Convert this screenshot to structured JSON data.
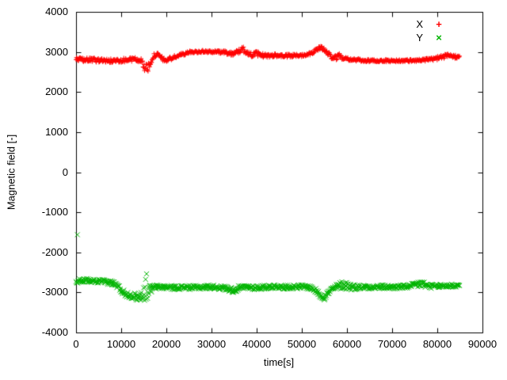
{
  "chart": {
    "xlabel": "time[s]",
    "ylabel": "Magnetic field [-]",
    "x_ticks": [
      0,
      10000,
      20000,
      30000,
      40000,
      50000,
      60000,
      70000,
      80000,
      90000
    ],
    "y_ticks": [
      -4000,
      -3000,
      -2000,
      -1000,
      0,
      1000,
      2000,
      3000,
      4000
    ],
    "legend": [
      {
        "label": "X",
        "glyph": "+",
        "color": "#ff0000"
      },
      {
        "label": "Y",
        "glyph": "×",
        "color": "#00b400"
      }
    ]
  },
  "chart_data": {
    "type": "scatter",
    "title": "",
    "xlabel": "time[s]",
    "ylabel": "Magnetic field [-]",
    "xlim": [
      0,
      90000
    ],
    "ylim": [
      -4000,
      4000
    ],
    "grid": false,
    "legend_position": "top-right",
    "series": [
      {
        "name": "X",
        "color": "#ff0000",
        "marker": "plus",
        "sample_step": 110,
        "keypoints": [
          [
            0,
            2810,
            50
          ],
          [
            3000,
            2800,
            50
          ],
          [
            6000,
            2790,
            50
          ],
          [
            8000,
            2770,
            60
          ],
          [
            9000,
            2790,
            50
          ],
          [
            11000,
            2800,
            50
          ],
          [
            13000,
            2820,
            50
          ],
          [
            14500,
            2780,
            60
          ],
          [
            15300,
            2600,
            120
          ],
          [
            15800,
            2550,
            130
          ],
          [
            16300,
            2700,
            100
          ],
          [
            17000,
            2880,
            60
          ],
          [
            17800,
            2940,
            50
          ],
          [
            18500,
            2900,
            50
          ],
          [
            19200,
            2820,
            50
          ],
          [
            20000,
            2790,
            50
          ],
          [
            21000,
            2840,
            50
          ],
          [
            22500,
            2900,
            40
          ],
          [
            24000,
            2960,
            40
          ],
          [
            25500,
            3000,
            30
          ],
          [
            28000,
            3010,
            30
          ],
          [
            31000,
            3005,
            30
          ],
          [
            33000,
            2990,
            40
          ],
          [
            34500,
            2960,
            50
          ],
          [
            35500,
            2990,
            60
          ],
          [
            36500,
            3040,
            70
          ],
          [
            37200,
            3060,
            80
          ],
          [
            38000,
            2980,
            60
          ],
          [
            39000,
            2920,
            50
          ],
          [
            40000,
            2960,
            60
          ],
          [
            41000,
            2920,
            50
          ],
          [
            42500,
            2900,
            50
          ],
          [
            44000,
            2920,
            40
          ],
          [
            46000,
            2900,
            40
          ],
          [
            48000,
            2905,
            40
          ],
          [
            50000,
            2920,
            40
          ],
          [
            51500,
            2950,
            40
          ],
          [
            52500,
            3000,
            40
          ],
          [
            53500,
            3080,
            50
          ],
          [
            54500,
            3100,
            50
          ],
          [
            55500,
            3000,
            60
          ],
          [
            56500,
            2880,
            50
          ],
          [
            57500,
            2860,
            60
          ],
          [
            58500,
            2900,
            70
          ],
          [
            59500,
            2860,
            60
          ],
          [
            61000,
            2810,
            40
          ],
          [
            63000,
            2790,
            35
          ],
          [
            65000,
            2780,
            30
          ],
          [
            67000,
            2780,
            30
          ],
          [
            69000,
            2780,
            30
          ],
          [
            71000,
            2780,
            30
          ],
          [
            73000,
            2780,
            30
          ],
          [
            75000,
            2790,
            30
          ],
          [
            77000,
            2800,
            35
          ],
          [
            79000,
            2820,
            40
          ],
          [
            80500,
            2860,
            50
          ],
          [
            82000,
            2900,
            50
          ],
          [
            83500,
            2880,
            50
          ],
          [
            85000,
            2900,
            50
          ]
        ],
        "outliers": []
      },
      {
        "name": "Y",
        "color": "#00b400",
        "marker": "cross",
        "sample_step": 110,
        "keypoints": [
          [
            0,
            -2720,
            50
          ],
          [
            2000,
            -2700,
            50
          ],
          [
            4000,
            -2720,
            50
          ],
          [
            6000,
            -2730,
            50
          ],
          [
            8000,
            -2760,
            60
          ],
          [
            9000,
            -2820,
            70
          ],
          [
            10000,
            -2950,
            70
          ],
          [
            11000,
            -3040,
            70
          ],
          [
            12000,
            -3060,
            80
          ],
          [
            13000,
            -3100,
            90
          ],
          [
            14000,
            -3120,
            100
          ],
          [
            14800,
            -3050,
            120
          ],
          [
            15500,
            -2850,
            380
          ],
          [
            16200,
            -2950,
            150
          ],
          [
            17000,
            -2890,
            70
          ],
          [
            18000,
            -2860,
            50
          ],
          [
            20000,
            -2870,
            50
          ],
          [
            22000,
            -2880,
            50
          ],
          [
            24000,
            -2870,
            50
          ],
          [
            26000,
            -2880,
            50
          ],
          [
            28000,
            -2870,
            50
          ],
          [
            30000,
            -2860,
            50
          ],
          [
            32000,
            -2880,
            50
          ],
          [
            33500,
            -2900,
            60
          ],
          [
            35000,
            -2950,
            70
          ],
          [
            36000,
            -2890,
            60
          ],
          [
            38000,
            -2870,
            50
          ],
          [
            40000,
            -2880,
            60
          ],
          [
            42000,
            -2870,
            50
          ],
          [
            44000,
            -2850,
            50
          ],
          [
            46000,
            -2870,
            50
          ],
          [
            48000,
            -2860,
            50
          ],
          [
            50000,
            -2855,
            50
          ],
          [
            52000,
            -2880,
            50
          ],
          [
            53000,
            -2950,
            60
          ],
          [
            54000,
            -3060,
            70
          ],
          [
            55000,
            -3120,
            70
          ],
          [
            56000,
            -2990,
            70
          ],
          [
            57000,
            -2900,
            60
          ],
          [
            58000,
            -2850,
            80
          ],
          [
            59000,
            -2810,
            100
          ],
          [
            60000,
            -2830,
            110
          ],
          [
            61000,
            -2860,
            80
          ],
          [
            62000,
            -2870,
            60
          ],
          [
            64000,
            -2860,
            50
          ],
          [
            66000,
            -2870,
            50
          ],
          [
            68000,
            -2860,
            50
          ],
          [
            70000,
            -2870,
            50
          ],
          [
            72000,
            -2860,
            50
          ],
          [
            74000,
            -2850,
            50
          ],
          [
            75500,
            -2800,
            80
          ],
          [
            76500,
            -2780,
            100
          ],
          [
            77500,
            -2830,
            70
          ],
          [
            79000,
            -2850,
            50
          ],
          [
            81000,
            -2840,
            50
          ],
          [
            83000,
            -2830,
            50
          ],
          [
            85000,
            -2830,
            50
          ]
        ],
        "outliers": [
          [
            300,
            -1560
          ]
        ]
      }
    ]
  }
}
